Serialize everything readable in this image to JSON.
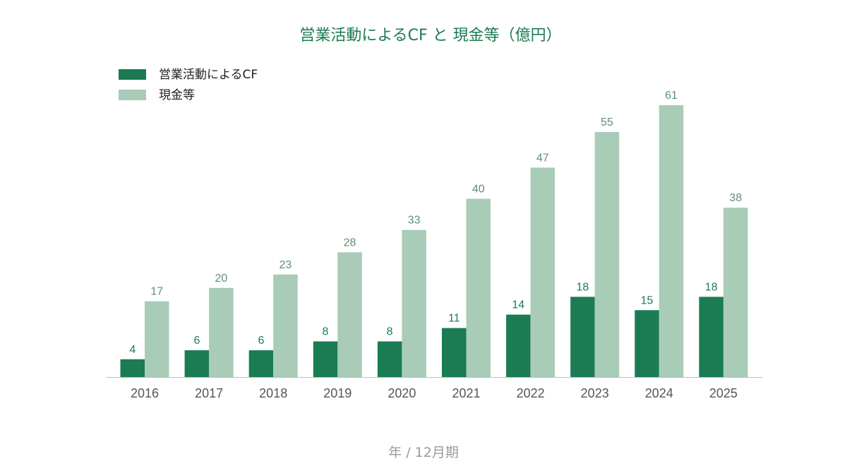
{
  "chart_data": {
    "type": "bar",
    "title": "営業活動によるCF と 現金等（億円）",
    "xlabel": "年 / 12月期",
    "ylabel": "",
    "categories": [
      "2016",
      "2017",
      "2018",
      "2019",
      "2020",
      "2021",
      "2022",
      "2023",
      "2024",
      "2025"
    ],
    "series": [
      {
        "name": "営業活動によるCF",
        "values": [
          4,
          6,
          6,
          8,
          8,
          11,
          14,
          18,
          15,
          18
        ],
        "labels": [
          "4",
          "6",
          "6",
          "8",
          "8",
          "11",
          "14",
          "18",
          "15",
          "18"
        ],
        "color": "#1b7b52",
        "label_color": "#1b7b52"
      },
      {
        "name": "現金等",
        "values": [
          17,
          20,
          23,
          28,
          33,
          40,
          47,
          55,
          61,
          38
        ],
        "labels": [
          "17",
          "20",
          "23",
          "28",
          "33",
          "40",
          "47",
          "55",
          "61",
          "38"
        ],
        "color": "#a8ccb7",
        "label_color": "#5f8f74"
      }
    ],
    "ylim": [
      0,
      61
    ],
    "grid": false,
    "legend_position": "top-left",
    "title_color": "#1b7b52",
    "axis_color": "#bdbdbd"
  }
}
